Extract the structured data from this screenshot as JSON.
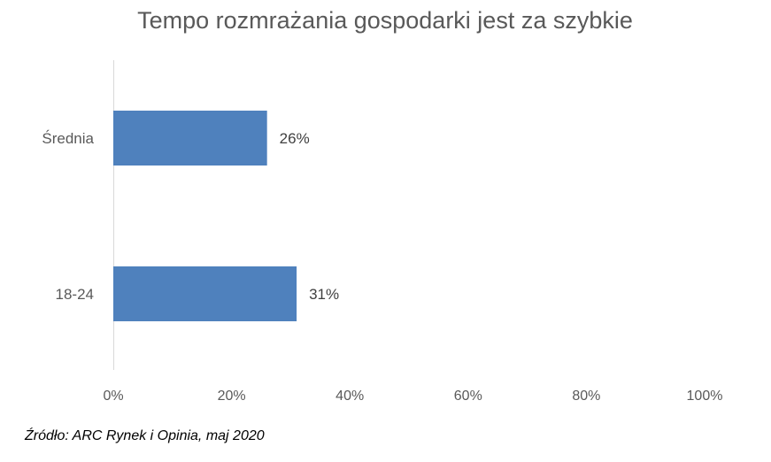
{
  "chart_data": {
    "type": "bar",
    "orientation": "horizontal",
    "title": "Tempo rozmrażania gospodarki jest za szybkie",
    "categories": [
      "Średnia",
      "18-24"
    ],
    "values": [
      26,
      31
    ],
    "value_labels": [
      "26%",
      "31%"
    ],
    "xlim": [
      0,
      100
    ],
    "x_ticks": [
      0,
      20,
      40,
      60,
      80,
      100
    ],
    "x_tick_labels": [
      "0%",
      "20%",
      "40%",
      "60%",
      "80%",
      "100%"
    ],
    "xlabel": "",
    "ylabel": "",
    "grid": false,
    "legend": "none",
    "bar_color": "#4F81BD"
  },
  "source": "Źródło: ARC Rynek i Opinia, maj 2020"
}
